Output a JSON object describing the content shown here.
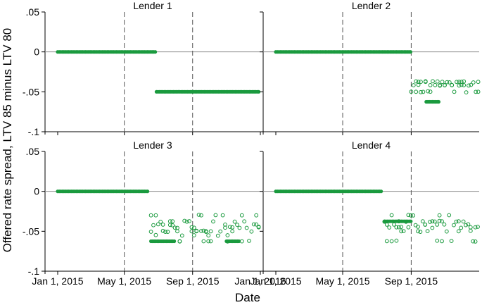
{
  "figure": {
    "ylabel": "Offered rate spread, LTV 85 minus LTV 80",
    "xlabel": "Date"
  },
  "chart_data": [
    {
      "type": "scatter",
      "title": "Lender 1",
      "ylim": [
        -0.1,
        0.05
      ],
      "yticks": [
        ".05",
        "0",
        "-.05",
        "-.1"
      ],
      "x_range": [
        "2015-01-01",
        "2016-01-01"
      ],
      "xticks": [
        "Jan 1, 2015",
        "May 1, 2015",
        "Sep 1, 2015",
        "Jan 1, 2016"
      ],
      "xticklabels_shown": [],
      "vlines": [
        "2015-05-01",
        "2015-09-01"
      ],
      "hline": 0,
      "series": [
        {
          "marker": "filled-circle",
          "color": "#1a9a3e",
          "segments": [
            {
              "x_start": "2015-01-01",
              "x_end": "2015-06-28",
              "y": 0
            },
            {
              "x_start": "2015-06-28",
              "x_end": "2015-12-31",
              "y": -0.05
            }
          ]
        }
      ]
    },
    {
      "type": "scatter",
      "title": "Lender 2",
      "ylim": [
        -0.1,
        0.05
      ],
      "yticks": [],
      "x_range": [
        "2015-01-01",
        "2016-01-01"
      ],
      "xticks": [
        "Jan 1, 2015",
        "May 1, 2015",
        "Sep 1, 2015"
      ],
      "xticklabels_shown": [],
      "vlines": [
        "2015-05-01",
        "2015-09-01"
      ],
      "hline": 0,
      "series": [
        {
          "marker": "filled-circle",
          "color": "#1a9a3e",
          "segments": [
            {
              "x_start": "2015-01-01",
              "x_end": "2015-09-01",
              "y": 0
            },
            {
              "x_start": "2015-09-28",
              "x_end": "2015-10-21",
              "y": -0.0625
            }
          ]
        },
        {
          "marker": "hollow-circle",
          "color": "#1a9a3e",
          "cluster": {
            "x_start": "2015-09-01",
            "x_end": "2015-12-31",
            "y_values": [
              -0.0375,
              -0.0417,
              -0.05,
              -0.0417,
              -0.0375
            ]
          }
        }
      ]
    },
    {
      "type": "scatter",
      "title": "Lender 3",
      "ylim": [
        -0.1,
        0.05
      ],
      "yticks": [
        ".05",
        "0",
        "-.05",
        "-.1"
      ],
      "x_range": [
        "2015-01-01",
        "2016-01-01"
      ],
      "xticks": [
        "Jan 1, 2015",
        "May 1, 2015",
        "Sep 1, 2015",
        "Jan 1, 2016"
      ],
      "xticklabels_shown": [
        "Jan 1, 2015",
        "May 1, 2015",
        "Sep 1, 2015",
        "Jan 1, 2016"
      ],
      "vlines": [
        "2015-05-01",
        "2015-09-01"
      ],
      "hline": 0,
      "series": [
        {
          "marker": "filled-circle",
          "color": "#1a9a3e",
          "segments": [
            {
              "x_start": "2015-01-01",
              "x_end": "2015-06-14",
              "y": 0
            },
            {
              "x_start": "2015-06-18",
              "x_end": "2015-07-31",
              "y": -0.0625
            },
            {
              "x_start": "2015-11-01",
              "x_end": "2015-11-24",
              "y": -0.0625
            }
          ]
        },
        {
          "marker": "hollow-circle",
          "color": "#1a9a3e",
          "cluster": {
            "x_start": "2015-06-18",
            "x_end": "2015-12-31",
            "y_values": [
              -0.0375,
              -0.0417,
              -0.045,
              -0.05,
              -0.055,
              -0.0625,
              -0.03
            ]
          }
        }
      ]
    },
    {
      "type": "scatter",
      "title": "Lender 4",
      "ylim": [
        -0.1,
        0.05
      ],
      "yticks": [],
      "x_range": [
        "2015-01-01",
        "2016-01-01"
      ],
      "xticks": [
        "Jan 1, 2015",
        "May 1, 2015",
        "Sep 1, 2015"
      ],
      "xticklabels_shown": [
        "Jan 1, 2015",
        "May 1, 2015",
        "Sep 1, 2015"
      ],
      "vlines": [
        "2015-05-01",
        "2015-09-01"
      ],
      "hline": 0,
      "series": [
        {
          "marker": "filled-circle",
          "color": "#1a9a3e",
          "segments": [
            {
              "x_start": "2015-01-01",
              "x_end": "2015-07-11",
              "y": 0
            },
            {
              "x_start": "2015-07-15",
              "x_end": "2015-09-01",
              "y": -0.0375
            }
          ]
        },
        {
          "marker": "hollow-circle",
          "color": "#1a9a3e",
          "cluster": {
            "x_start": "2015-07-15",
            "x_end": "2015-12-31",
            "y_values": [
              -0.0375,
              -0.0417,
              -0.045,
              -0.05,
              -0.0625,
              -0.03
            ]
          }
        }
      ]
    }
  ]
}
